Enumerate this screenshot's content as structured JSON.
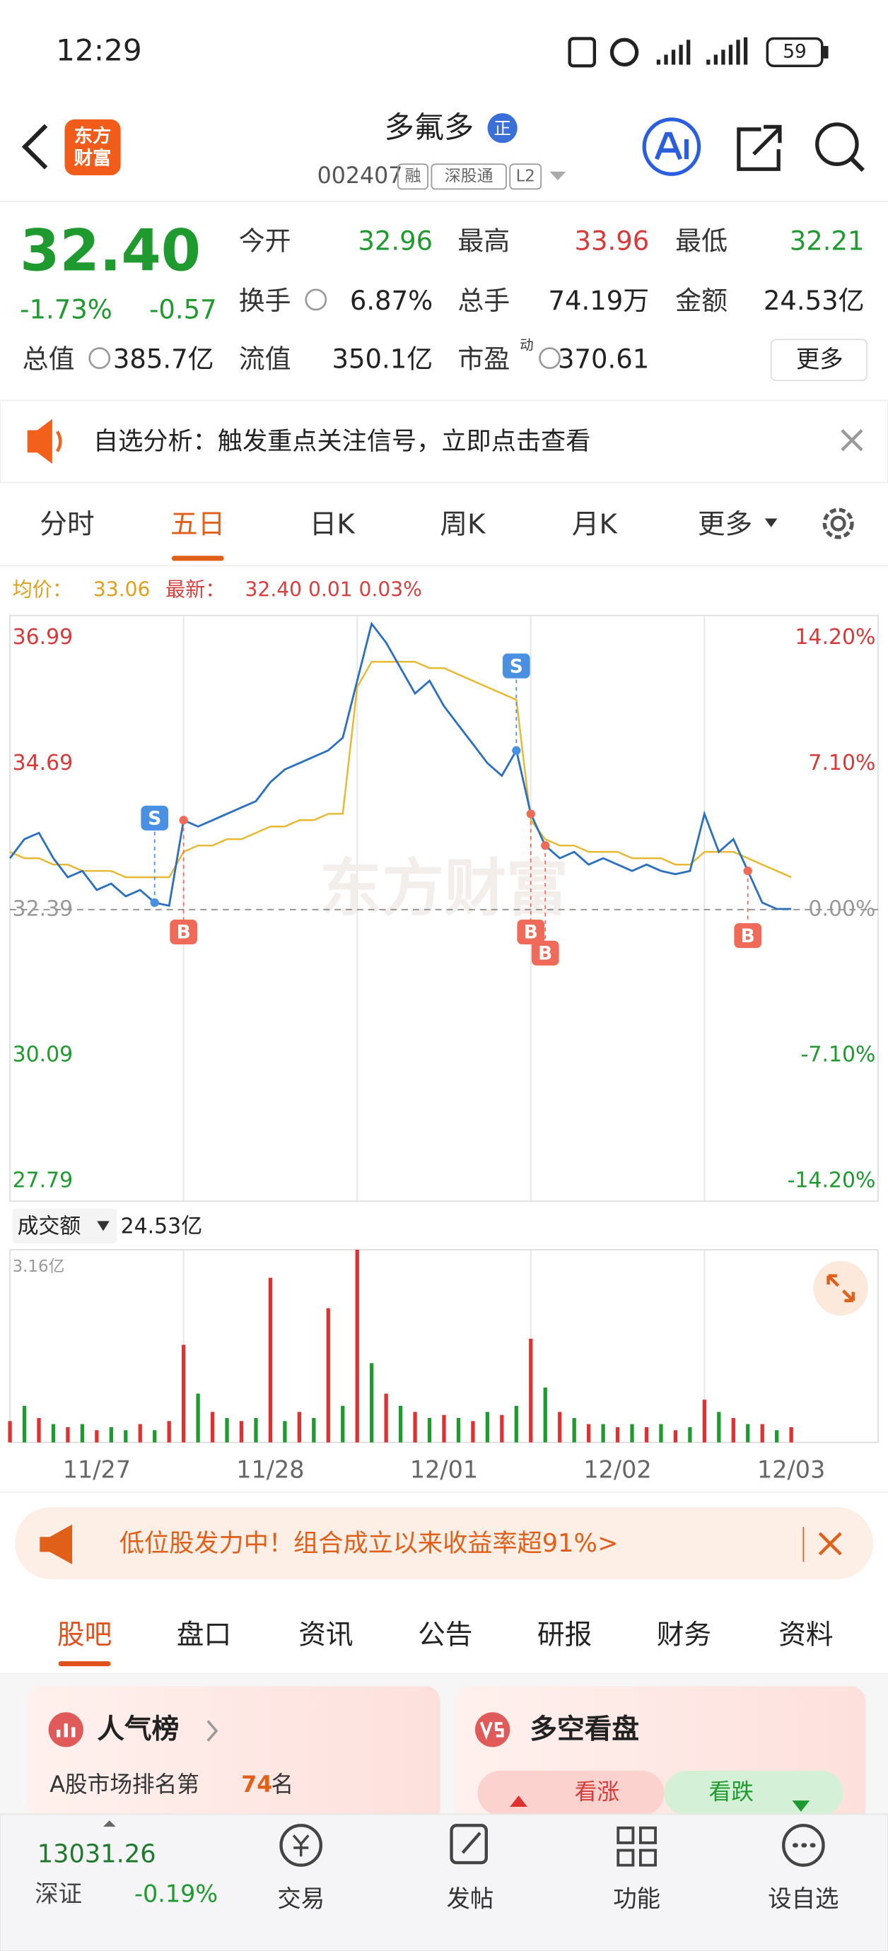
{
  "status_bar": {
    "time": "12:29",
    "battery": "59"
  },
  "header": {
    "logo": [
      "东方",
      "财富"
    ],
    "name": "多氟多",
    "badge": "正",
    "code": "002407",
    "tags": [
      "融",
      "深股通",
      "L2"
    ]
  },
  "quote": {
    "price": "32.40",
    "change_pct": "-1.73%",
    "change": "-0.57",
    "fields": [
      {
        "label": "今开",
        "value": "32.96",
        "color": "#1f9a2e"
      },
      {
        "label": "最高",
        "value": "33.96",
        "color": "#d83a3a"
      },
      {
        "label": "最低",
        "value": "32.21",
        "color": "#1f9a2e"
      },
      {
        "label": "换手",
        "value": "6.87%",
        "color": "#222222",
        "info": true
      },
      {
        "label": "总手",
        "value": "74.19万",
        "color": "#222222"
      },
      {
        "label": "金额",
        "value": "24.53亿",
        "color": "#222222"
      },
      {
        "label": "总值",
        "value": "385.7亿",
        "color": "#222222",
        "info": true
      },
      {
        "label": "流值",
        "value": "350.1亿",
        "color": "#222222"
      },
      {
        "label": "市盈",
        "sup": "动",
        "value": "370.61",
        "color": "#222222",
        "info": true
      }
    ],
    "more": "更多"
  },
  "notice": {
    "text": "自选分析：触发重点关注信号，立即点击查看"
  },
  "tabs": {
    "items": [
      "分时",
      "五日",
      "日K",
      "周K",
      "月K",
      "更多"
    ],
    "active": 1
  },
  "info_line": {
    "avg_label": "均价：",
    "avg": "33.06",
    "latest_label": "最新：",
    "latest": "32.40 0.01 0.03%"
  },
  "chart_data": [
    {
      "type": "line",
      "watermark": "东方财富",
      "ylim": [
        27.79,
        36.99
      ],
      "yticks": [
        36.99,
        34.69,
        32.39,
        30.09,
        27.79
      ],
      "y2lim": [
        -14.2,
        14.2
      ],
      "y2ticks": [
        {
          "value": 14.2,
          "label": "14.20%"
        },
        {
          "value": 7.1,
          "label": "7.10%"
        },
        {
          "value": 0,
          "label": "0.00%"
        },
        {
          "value": -7.1,
          "label": "-7.10%"
        },
        {
          "value": -14.2,
          "label": "-14.20%"
        }
      ],
      "grid": false,
      "series": [
        {
          "color": "#2a6fc0",
          "values": [
            [
              33.2,
              33.5,
              33.6,
              33.2,
              32.9,
              33.0,
              32.7,
              32.8,
              32.6,
              32.7,
              32.5,
              32.45
            ],
            [
              33.8,
              33.7,
              33.8,
              33.9,
              34.0,
              34.1,
              34.4,
              34.6,
              34.7,
              34.8,
              34.9,
              35.1
            ],
            [
              36.0,
              36.9,
              36.6,
              36.2,
              35.8,
              36.0,
              35.6,
              35.3,
              35.0,
              34.7,
              34.5,
              34.9
            ],
            [
              33.9,
              33.4,
              33.2,
              33.3,
              33.1,
              33.2,
              33.1,
              33.0,
              33.1,
              33.0,
              32.95,
              33.0
            ],
            [
              33.9,
              33.3,
              33.5,
              33.0,
              32.5,
              32.4,
              32.4
            ]
          ]
        },
        {
          "color": "#e8b830",
          "values": [
            [
              33.3,
              33.2,
              33.2,
              33.1,
              33.1,
              33.0,
              33.0,
              33.0,
              32.9,
              32.9,
              32.9,
              32.9
            ],
            [
              33.3,
              33.4,
              33.4,
              33.5,
              33.5,
              33.6,
              33.7,
              33.7,
              33.8,
              33.8,
              33.9,
              33.9
            ],
            [
              35.9,
              36.3,
              36.3,
              36.3,
              36.3,
              36.2,
              36.2,
              36.1,
              36.0,
              35.9,
              35.8,
              35.7
            ],
            [
              33.8,
              33.5,
              33.4,
              33.4,
              33.3,
              33.3,
              33.3,
              33.2,
              33.2,
              33.2,
              33.1,
              33.1
            ],
            [
              33.3,
              33.3,
              33.3,
              33.2,
              33.1,
              33.0,
              32.9
            ]
          ]
        }
      ],
      "signals": [
        {
          "label": "S",
          "day": 0,
          "point": 10
        },
        {
          "label": "B",
          "day": 1,
          "point": 0
        },
        {
          "label": "S",
          "day": 2,
          "point": 11
        },
        {
          "label": "B",
          "day": 3,
          "point": 0
        },
        {
          "label": "B",
          "day": 3,
          "point": 1
        },
        {
          "label": "B",
          "day": 4,
          "point": 3
        }
      ]
    },
    {
      "type": "bar",
      "title": "成交额",
      "total": "24.53亿",
      "categories": [
        "11/27",
        "11/28",
        "12/01",
        "12/02",
        "12/03"
      ],
      "ylim": [
        0,
        3.16
      ],
      "yticks": [
        {
          "value": 3.16,
          "label": "3.16亿"
        }
      ],
      "series": [
        {
          "color": "#e03030",
          "values": [
            [
              0.35,
              null,
              0.4,
              null,
              0.25,
              null,
              0.2,
              null,
              null,
              0.3,
              null,
              0.35
            ],
            [
              1.6,
              null,
              0.5,
              null,
              0.35,
              null,
              2.7,
              null,
              0.5,
              null,
              2.2,
              null
            ],
            [
              3.16,
              null,
              0.8,
              null,
              0.5,
              null,
              0.45,
              null,
              0.35,
              null,
              0.45,
              null
            ],
            [
              1.7,
              null,
              0.5,
              null,
              0.3,
              null,
              0.25,
              null,
              0.25,
              null,
              0.2,
              null
            ],
            [
              0.7,
              null,
              0.4,
              null,
              0.3,
              null,
              0.25
            ]
          ]
        },
        {
          "color": "#1f9a2e",
          "values": [
            [
              null,
              0.6,
              null,
              0.3,
              null,
              0.3,
              null,
              0.25,
              0.2,
              null,
              0.2,
              null
            ],
            [
              null,
              0.8,
              null,
              0.4,
              null,
              0.4,
              null,
              0.35,
              null,
              0.4,
              null,
              0.6
            ],
            [
              null,
              1.3,
              null,
              0.6,
              null,
              0.4,
              null,
              0.4,
              null,
              0.5,
              null,
              0.6
            ],
            [
              null,
              0.9,
              null,
              0.4,
              null,
              0.3,
              null,
              0.3,
              null,
              0.3,
              null,
              0.25
            ],
            [
              null,
              0.5,
              null,
              0.3,
              null,
              0.2,
              null
            ]
          ]
        }
      ]
    }
  ],
  "promo": {
    "text": "低位股发力中！组合成立以来收益率超91%>"
  },
  "sub_tabs": {
    "items": [
      "股吧",
      "盘口",
      "资讯",
      "公告",
      "研报",
      "财务",
      "资料"
    ],
    "active": 0
  },
  "cards": {
    "popularity": {
      "title": "人气榜",
      "text_before": "A股市场排名第",
      "rank": "74",
      "text_after": "名"
    },
    "sentiment": {
      "title": "多空看盘",
      "bull": "看涨",
      "bear": "看跌"
    }
  },
  "bottom_nav": {
    "index_value": "13031.26",
    "index_name": "深证",
    "index_change": "-0.19%",
    "items": [
      "交易",
      "发帖",
      "功能",
      "设自选"
    ]
  }
}
